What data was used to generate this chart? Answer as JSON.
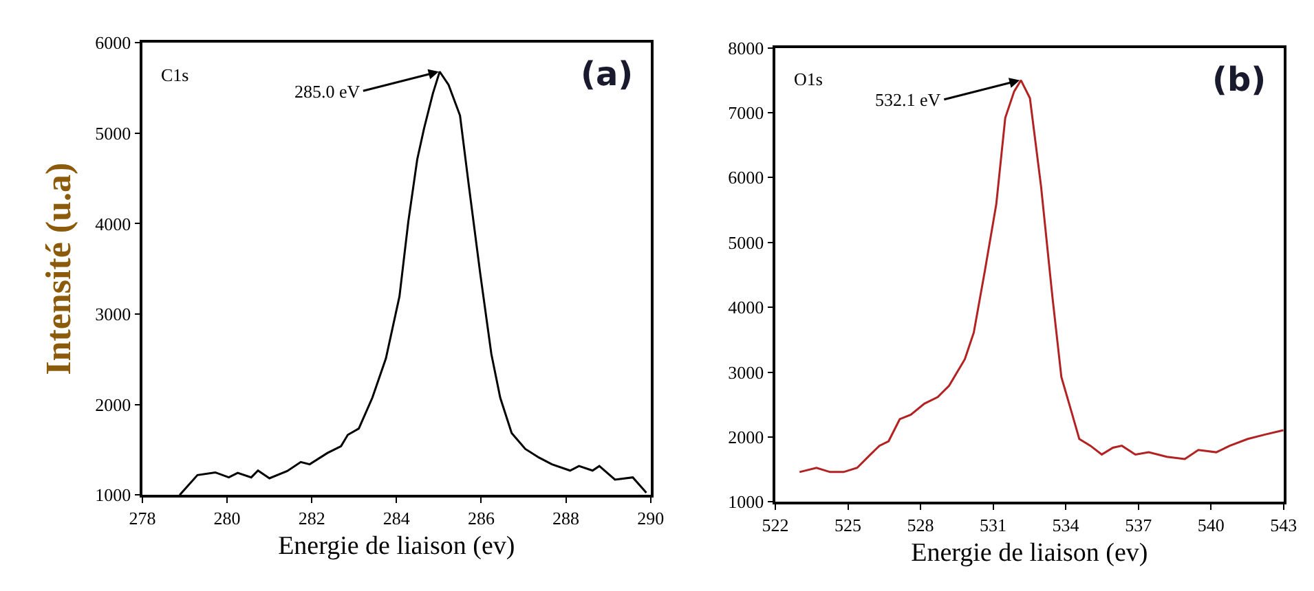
{
  "chart_data": [
    {
      "type": "line",
      "xlabel": "Energie de liaison (ev)",
      "ylabel": "Intensité (u.a)",
      "xlim": [
        278,
        290
      ],
      "ylim": [
        1000,
        6000
      ],
      "xticks": [
        278,
        280,
        282,
        284,
        286,
        288,
        290
      ],
      "yticks": [
        1000,
        2000,
        3000,
        4000,
        5000,
        6000
      ],
      "marker": "none",
      "line_style": "solid",
      "annotations": [
        "C1s",
        "(a)",
        {
          "text": "285.0 eV",
          "x": 285.0,
          "y": 5680
        }
      ],
      "series": [
        {
          "color": "#000000",
          "x": [
            278.88,
            279.3,
            279.72,
            280.04,
            280.25,
            280.57,
            280.73,
            281.0,
            281.42,
            281.74,
            281.95,
            282.37,
            282.69,
            282.85,
            283.11,
            283.43,
            283.75,
            284.07,
            284.28,
            284.49,
            284.65,
            284.86,
            285.02,
            285.23,
            285.5,
            285.71,
            285.98,
            286.24,
            286.45,
            286.72,
            287.04,
            287.36,
            287.67,
            288.1,
            288.31,
            288.63,
            288.79,
            289.16,
            289.58,
            289.9
          ],
          "values": [
            1000,
            1220,
            1250,
            1195,
            1245,
            1195,
            1270,
            1185,
            1265,
            1365,
            1340,
            1465,
            1540,
            1665,
            1735,
            2075,
            2510,
            3195,
            4025,
            4710,
            5050,
            5440,
            5680,
            5535,
            5195,
            4415,
            3440,
            2560,
            2075,
            1685,
            1510,
            1415,
            1340,
            1270,
            1320,
            1270,
            1320,
            1170,
            1195,
            1025
          ]
        }
      ]
    },
    {
      "type": "line",
      "xlabel": "Energie de liaison (ev)",
      "xlim": [
        522,
        543
      ],
      "ylim": [
        1000,
        8000
      ],
      "xticks": [
        522,
        525,
        528,
        531,
        534,
        537,
        540,
        543
      ],
      "yticks": [
        1000,
        2000,
        3000,
        4000,
        5000,
        6000,
        7000,
        8000
      ],
      "marker": "none",
      "line_style": "solid",
      "annotations": [
        "O1s",
        "(b)",
        {
          "text": "532.1 eV",
          "x": 532.1,
          "y": 7500
        }
      ],
      "series": [
        {
          "color": "#b22222",
          "x": [
            523.0,
            523.7,
            524.26,
            524.82,
            525.38,
            525.93,
            526.3,
            526.68,
            527.14,
            527.6,
            528.16,
            528.71,
            529.18,
            529.83,
            530.2,
            530.66,
            531.13,
            531.5,
            531.87,
            532.15,
            532.52,
            532.98,
            533.45,
            533.82,
            534.19,
            534.56,
            535.02,
            535.49,
            535.95,
            536.32,
            536.88,
            537.43,
            538.18,
            538.92,
            539.48,
            540.22,
            540.78,
            541.52,
            542.26,
            543.0
          ],
          "values": [
            1460,
            1525,
            1460,
            1460,
            1525,
            1730,
            1865,
            1935,
            2275,
            2345,
            2515,
            2615,
            2790,
            3200,
            3610,
            4565,
            5590,
            6920,
            7330,
            7500,
            7225,
            5865,
            4160,
            2925,
            2450,
            1970,
            1865,
            1730,
            1835,
            1865,
            1730,
            1765,
            1695,
            1660,
            1800,
            1765,
            1865,
            1970,
            2040,
            2105
          ]
        }
      ]
    }
  ]
}
